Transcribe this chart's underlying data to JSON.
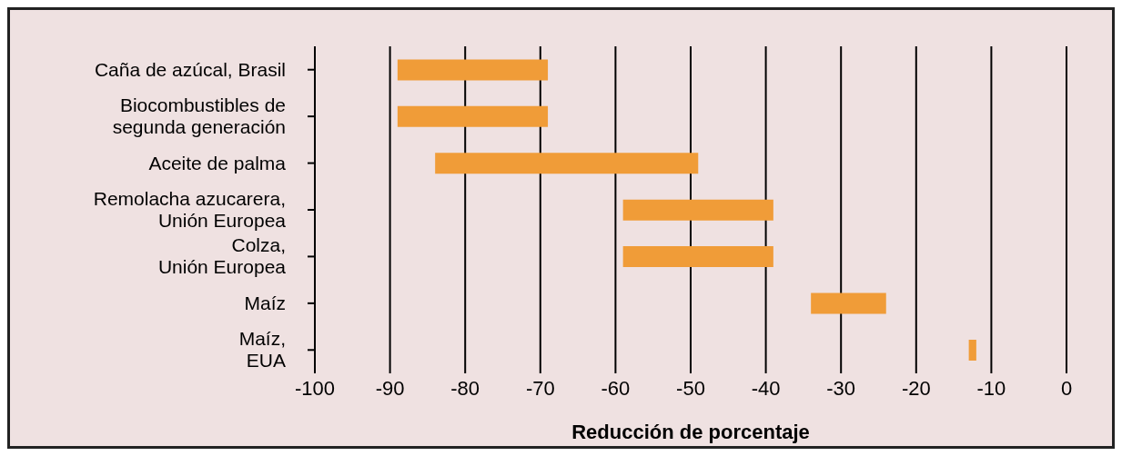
{
  "chart_data": {
    "type": "bar",
    "orientation": "horizontal",
    "xlabel": "Reducción de porcentaje",
    "categories": [
      "Caña de azúcal, Brasil",
      "Biocombustibles de\nsegunda generación",
      "Aceite de palma",
      "Remolacha azucarera,\nUnión Europea",
      "Colza,\nUnión Europea",
      "Maíz",
      "Maíz,\nEUA"
    ],
    "base": [
      -89,
      -89,
      -84,
      -59,
      -59,
      -34,
      -13
    ],
    "values": [
      20,
      20,
      35,
      20,
      20,
      10,
      1
    ],
    "color": "#f09c38",
    "xlim": [
      -100,
      0
    ],
    "xticks": [
      -100,
      -90,
      -80,
      -70,
      -60,
      -50,
      -40,
      -30,
      -20,
      -10,
      0
    ],
    "grid": "x"
  }
}
